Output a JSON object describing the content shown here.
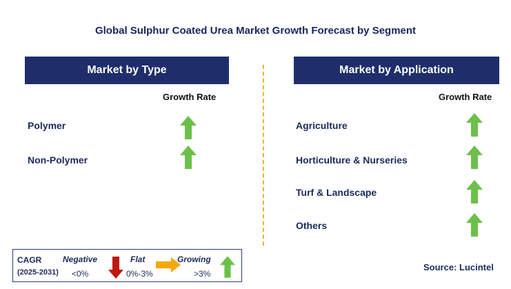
{
  "title": "Global Sulphur Coated Urea Market Growth Forecast by Segment",
  "left_panel": {
    "header": "Market by Type",
    "growth_label": "Growth Rate",
    "items": [
      {
        "label": "Polymer",
        "trend": "growing"
      },
      {
        "label": "Non-Polymer",
        "trend": "growing"
      }
    ]
  },
  "right_panel": {
    "header": "Market by Application",
    "growth_label": "Growth Rate",
    "items": [
      {
        "label": "Agriculture",
        "trend": "growing"
      },
      {
        "label": "Horticulture & Nurseries",
        "trend": "growing"
      },
      {
        "label": "Turf & Landscape",
        "trend": "growing"
      },
      {
        "label": "Others",
        "trend": "growing"
      }
    ]
  },
  "legend": {
    "cagr": "CAGR",
    "period": "(2025-2031)",
    "negative": {
      "label": "Negative",
      "range": "<0%",
      "color": "#c0160f"
    },
    "flat": {
      "label": "Flat",
      "range": "0%-3%",
      "color": "#f5a800"
    },
    "growing": {
      "label": "Growing",
      "range": ">3%",
      "color": "#6cc04a"
    }
  },
  "source": "Source: Lucintel",
  "colors": {
    "header_bg": "#1f2e6b",
    "divider": "#f2b134",
    "arrow_up": "#6cc04a"
  }
}
